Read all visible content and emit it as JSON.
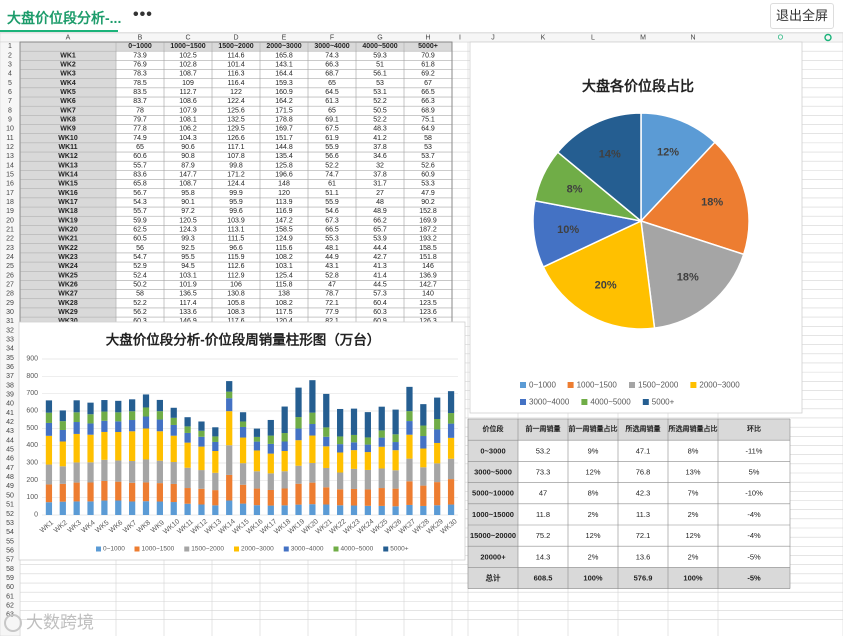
{
  "app": {
    "tab_title": "大盘价位段分析-...",
    "more_label": "•••",
    "exit_fullscreen": "退出全屏",
    "watermark": "大数跨境"
  },
  "colors": {
    "s1": "#5b9bd5",
    "s2": "#ed7d31",
    "s3": "#a5a5a5",
    "s4": "#ffc000",
    "s5": "#4472c4",
    "s6": "#70ad47",
    "s7": "#255e91",
    "header_fill": "#d9d9d9",
    "grid": "#d4d4d4",
    "accent": "#1bb37a"
  },
  "columns": [
    "A",
    "B",
    "C",
    "D",
    "E",
    "F",
    "G",
    "H",
    "I",
    "J",
    "K",
    "L",
    "M",
    "N",
    "O"
  ],
  "row_count": 63,
  "table1": {
    "headers": [
      "0~1000",
      "1000~1500",
      "1500~2000",
      "2000~3000",
      "3000~4000",
      "4000~5000",
      "5000+"
    ],
    "rows": [
      [
        "WK1",
        "73.9",
        "102.5",
        "114.6",
        "165.8",
        "74.3",
        "59.3",
        "70.9"
      ],
      [
        "WK2",
        "76.9",
        "102.8",
        "101.4",
        "143.1",
        "66.3",
        "51",
        "61.8"
      ],
      [
        "WK3",
        "78.3",
        "108.7",
        "116.3",
        "164.4",
        "68.7",
        "56.1",
        "69.2"
      ],
      [
        "WK4",
        "78.5",
        "109",
        "116.4",
        "159.3",
        "65",
        "53",
        "67"
      ],
      [
        "WK5",
        "83.5",
        "112.7",
        "122",
        "160.9",
        "64.5",
        "53.1",
        "66.5"
      ],
      [
        "WK6",
        "83.7",
        "108.6",
        "122.4",
        "164.2",
        "61.3",
        "52.2",
        "66.3"
      ],
      [
        "WK7",
        "78",
        "107.9",
        "125.6",
        "171.5",
        "65",
        "50.5",
        "68.9"
      ],
      [
        "WK8",
        "79.7",
        "108.1",
        "132.5",
        "178.8",
        "69.1",
        "52.2",
        "75.1"
      ],
      [
        "WK9",
        "77.8",
        "106.2",
        "129.5",
        "169.7",
        "67.5",
        "48.3",
        "64.9"
      ],
      [
        "WK10",
        "74.9",
        "104.3",
        "126.6",
        "151.7",
        "61.9",
        "41.2",
        "58"
      ],
      [
        "WK11",
        "65",
        "90.6",
        "117.1",
        "144.8",
        "55.9",
        "37.8",
        "53"
      ],
      [
        "WK12",
        "60.6",
        "90.8",
        "107.8",
        "135.4",
        "56.6",
        "34.6",
        "53.7"
      ],
      [
        "WK13",
        "55.7",
        "87.9",
        "99.8",
        "125.8",
        "52.2",
        "32",
        "52.6"
      ],
      [
        "WK14",
        "83.6",
        "147.7",
        "171.2",
        "196.6",
        "74.7",
        "37.8",
        "60.9"
      ],
      [
        "WK15",
        "65.8",
        "108.7",
        "124.4",
        "148",
        "61",
        "31.7",
        "53.3"
      ],
      [
        "WK16",
        "56.7",
        "95.8",
        "99.9",
        "120",
        "51.1",
        "27",
        "47.9"
      ],
      [
        "WK17",
        "54.3",
        "90.1",
        "95.9",
        "113.9",
        "55.9",
        "48",
        "90.2"
      ],
      [
        "WK18",
        "55.7",
        "97.2",
        "99.6",
        "116.9",
        "54.6",
        "48.9",
        "152.8"
      ],
      [
        "WK19",
        "59.9",
        "120.5",
        "103.9",
        "147.2",
        "67.3",
        "66.2",
        "169.9"
      ],
      [
        "WK20",
        "62.5",
        "124.3",
        "113.1",
        "158.5",
        "66.5",
        "65.7",
        "187.2"
      ],
      [
        "WK21",
        "60.5",
        "99.3",
        "111.5",
        "124.9",
        "55.3",
        "53.9",
        "193.2"
      ],
      [
        "WK22",
        "56",
        "92.5",
        "96.6",
        "115.6",
        "48.1",
        "44.4",
        "158.5"
      ],
      [
        "WK23",
        "54.7",
        "95.5",
        "115.9",
        "108.2",
        "44.9",
        "42.7",
        "151.8"
      ],
      [
        "WK24",
        "52.9",
        "94.5",
        "112.6",
        "103.1",
        "43.1",
        "41.3",
        "146"
      ],
      [
        "WK25",
        "52.4",
        "103.1",
        "112.9",
        "125.4",
        "52.8",
        "41.4",
        "136.9"
      ],
      [
        "WK26",
        "50.2",
        "101.9",
        "106",
        "115.8",
        "47",
        "44.5",
        "142.7"
      ],
      [
        "WK27",
        "58",
        "136.5",
        "130.8",
        "138",
        "78.7",
        "57.3",
        "140"
      ],
      [
        "WK28",
        "52.2",
        "117.4",
        "105.8",
        "108.2",
        "72.1",
        "60.4",
        "123.5"
      ],
      [
        "WK29",
        "56.2",
        "133.6",
        "108.3",
        "117.5",
        "77.9",
        "60.3",
        "123.6"
      ],
      [
        "WK30",
        "60.3",
        "146.9",
        "117.6",
        "120.4",
        "82.1",
        "60.9",
        "126.3"
      ]
    ]
  },
  "table2": {
    "headers": [
      "价位段",
      "前一周销量",
      "前一周销量占比",
      "所选周销量",
      "所选周销量占比",
      "环比"
    ],
    "rows": [
      [
        "0~3000",
        "53.2",
        "9%",
        "47.1",
        "8%",
        "-11%"
      ],
      [
        "3000~5000",
        "73.3",
        "12%",
        "76.8",
        "13%",
        "5%"
      ],
      [
        "5000~10000",
        "47",
        "8%",
        "42.3",
        "7%",
        "-10%"
      ],
      [
        "1000~15000",
        "11.8",
        "2%",
        "11.3",
        "2%",
        "-4%"
      ],
      [
        "15000~20000",
        "75.2",
        "12%",
        "72.1",
        "12%",
        "-4%"
      ],
      [
        "20000+",
        "14.3",
        "2%",
        "13.6",
        "2%",
        "-5%"
      ],
      [
        "总计",
        "608.5",
        "100%",
        "576.9",
        "100%",
        "-5%"
      ]
    ]
  },
  "chart_data": [
    {
      "type": "bar",
      "stacked": true,
      "title": "大盘价位段分析-价位段周销量柱形图（万台）",
      "xlabel": "",
      "ylabel": "",
      "ylim": [
        0,
        900
      ],
      "yticks": [
        0,
        100,
        200,
        300,
        400,
        500,
        600,
        700,
        800,
        900
      ],
      "grid": true,
      "legend": "bottom",
      "categories": [
        "WK1",
        "WK2",
        "WK3",
        "WK4",
        "WK5",
        "WK6",
        "WK7",
        "WK8",
        "WK9",
        "WK10",
        "WK11",
        "WK12",
        "WK13",
        "WK14",
        "WK15",
        "WK16",
        "WK17",
        "WK18",
        "WK19",
        "WK20",
        "WK21",
        "WK22",
        "WK23",
        "WK24",
        "WK25",
        "WK26",
        "WK27",
        "WK28",
        "WK29",
        "WK30"
      ],
      "series": [
        {
          "name": "0~1000",
          "color": "#5b9bd5",
          "values": [
            73.9,
            76.9,
            78.3,
            78.5,
            83.5,
            83.7,
            78,
            79.7,
            77.8,
            74.9,
            65,
            60.6,
            55.7,
            83.6,
            65.8,
            56.7,
            54.3,
            55.7,
            59.9,
            62.5,
            60.5,
            56,
            54.7,
            52.9,
            52.4,
            50.2,
            58,
            52.2,
            56.2,
            60.3
          ]
        },
        {
          "name": "1000~1500",
          "color": "#ed7d31",
          "values": [
            102.5,
            102.8,
            108.7,
            109,
            112.7,
            108.6,
            107.9,
            108.1,
            106.2,
            104.3,
            90.6,
            90.8,
            87.9,
            147.7,
            108.7,
            95.8,
            90.1,
            97.2,
            120.5,
            124.3,
            99.3,
            92.5,
            95.5,
            94.5,
            103.1,
            101.9,
            136.5,
            117.4,
            133.6,
            146.9
          ]
        },
        {
          "name": "1500~2000",
          "color": "#a5a5a5",
          "values": [
            114.6,
            101.4,
            116.3,
            116.4,
            122,
            122.4,
            125.6,
            132.5,
            129.5,
            126.6,
            117.1,
            107.8,
            99.8,
            171.2,
            124.4,
            99.9,
            95.9,
            99.6,
            103.9,
            113.1,
            111.5,
            96.6,
            115.9,
            112.6,
            112.9,
            106,
            130.8,
            105.8,
            108.3,
            117.6
          ]
        },
        {
          "name": "2000~3000",
          "color": "#ffc000",
          "values": [
            165.8,
            143.1,
            164.4,
            159.3,
            160.9,
            164.2,
            171.5,
            178.8,
            169.7,
            151.7,
            144.8,
            135.4,
            125.8,
            196.6,
            148,
            120,
            113.9,
            116.9,
            147.2,
            158.5,
            124.9,
            115.6,
            108.2,
            103.1,
            125.4,
            115.8,
            138,
            108.2,
            117.5,
            120.4
          ]
        },
        {
          "name": "3000~4000",
          "color": "#4472c4",
          "values": [
            74.3,
            66.3,
            68.7,
            65,
            64.5,
            61.3,
            65,
            69.1,
            67.5,
            61.9,
            55.9,
            56.6,
            52.2,
            74.7,
            61,
            51.1,
            55.9,
            54.6,
            67.3,
            66.5,
            55.3,
            48.1,
            44.9,
            43.1,
            52.8,
            47,
            78.7,
            72.1,
            77.9,
            82.1
          ]
        },
        {
          "name": "4000~5000",
          "color": "#70ad47",
          "values": [
            59.3,
            51,
            56.1,
            53,
            53.1,
            52.2,
            50.5,
            52.2,
            48.3,
            41.2,
            37.8,
            34.6,
            32,
            37.8,
            31.7,
            27,
            48,
            48.9,
            66.2,
            65.7,
            53.9,
            44.4,
            42.7,
            41.3,
            41.4,
            44.5,
            57.3,
            60.4,
            60.3,
            60.9
          ]
        },
        {
          "name": "5000+",
          "color": "#255e91",
          "values": [
            70.9,
            61.8,
            69.2,
            67,
            66.5,
            66.3,
            68.9,
            75.1,
            64.9,
            58,
            53,
            53.7,
            52.6,
            60.9,
            53.3,
            47.9,
            90.2,
            152.8,
            169.9,
            187.2,
            193.2,
            158.5,
            151.8,
            146,
            136.9,
            142.7,
            140,
            123.5,
            123.6,
            126.3
          ]
        }
      ]
    },
    {
      "type": "pie",
      "title": "大盘各价位段占比",
      "legend": "bottom",
      "slices": [
        {
          "name": "0~1000",
          "value": 12,
          "label": "12%",
          "color": "#5b9bd5"
        },
        {
          "name": "1000~1500",
          "value": 18,
          "label": "18%",
          "color": "#ed7d31"
        },
        {
          "name": "1500~2000",
          "value": 18,
          "label": "18%",
          "color": "#a5a5a5"
        },
        {
          "name": "2000~3000",
          "value": 20,
          "label": "20%",
          "color": "#ffc000"
        },
        {
          "name": "3000~4000",
          "value": 10,
          "label": "10%",
          "color": "#4472c4"
        },
        {
          "name": "4000~5000",
          "value": 8,
          "label": "8%",
          "color": "#70ad47"
        },
        {
          "name": "5000+",
          "value": 14,
          "label": "14%",
          "color": "#255e91"
        }
      ]
    }
  ]
}
